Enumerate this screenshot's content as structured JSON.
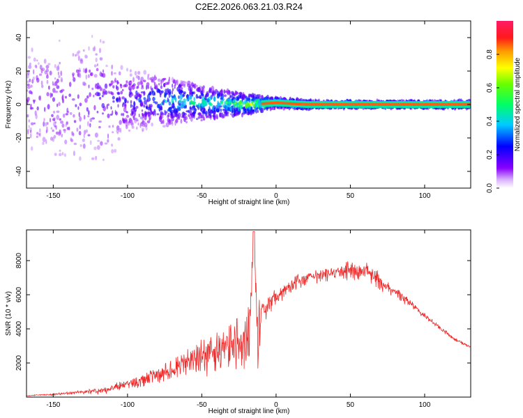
{
  "title": "C2E2.2026.063.21.03.R24",
  "chart_data": [
    {
      "type": "heatmap",
      "description_role": "spectrogram",
      "xlabel": "Height of straight line (km)",
      "ylabel": "Frequency (Hz)",
      "xlim": [
        -168,
        131
      ],
      "ylim": [
        -50,
        50
      ],
      "x_ticks": [
        -150,
        -100,
        -50,
        0,
        50,
        100
      ],
      "x_tick_labels": [
        "-150",
        "-100",
        "-50",
        "0",
        "50",
        "100"
      ],
      "y_ticks": [
        -40,
        -20,
        0,
        20,
        40
      ],
      "y_tick_labels": [
        "-40",
        "-20",
        "0",
        "20",
        "40"
      ],
      "colorbar": {
        "label": "Normalized spectral amplitude",
        "range": [
          0,
          1
        ],
        "ticks": [
          0.0,
          0.2,
          0.4,
          0.6,
          0.8
        ],
        "tick_labels": [
          "0.0",
          "0.2",
          "0.4",
          "0.6",
          "0.8"
        ]
      },
      "band": {
        "center_hz": [
          [
            -168,
            2
          ],
          [
            -120,
            2
          ],
          [
            -80,
            2
          ],
          [
            -50,
            1
          ],
          [
            -20,
            0
          ],
          [
            0,
            1
          ],
          [
            20,
            0
          ],
          [
            131,
            0
          ]
        ],
        "halfwidth_hz": [
          [
            -168,
            48
          ],
          [
            -120,
            45
          ],
          [
            -100,
            20
          ],
          [
            -60,
            12
          ],
          [
            -20,
            6
          ],
          [
            0,
            3
          ],
          [
            30,
            2
          ],
          [
            131,
            2
          ]
        ],
        "peak_amplitude": [
          [
            -168,
            0.15
          ],
          [
            -120,
            0.22
          ],
          [
            -90,
            0.3
          ],
          [
            -70,
            0.5
          ],
          [
            -40,
            0.6
          ],
          [
            -10,
            0.85
          ],
          [
            20,
            0.9
          ],
          [
            131,
            0.95
          ]
        ]
      }
    },
    {
      "type": "line",
      "xlabel": "Height of straight line (km)",
      "ylabel": "SNR (10 * v/v)",
      "xlim": [
        -168,
        131
      ],
      "ylim": [
        0,
        9800
      ],
      "x_ticks": [
        -150,
        -100,
        -50,
        0,
        50,
        100
      ],
      "x_tick_labels": [
        "-150",
        "-100",
        "-50",
        "0",
        "50",
        "100"
      ],
      "y_ticks": [
        2000,
        4000,
        6000,
        8000
      ],
      "y_tick_labels": [
        "2000",
        "4000",
        "6000",
        "8000"
      ],
      "color": "#ee2a2a",
      "series": [
        {
          "name": "SNR",
          "x": [
            -168,
            -160,
            -150,
            -140,
            -130,
            -120,
            -110,
            -100,
            -90,
            -80,
            -70,
            -60,
            -50,
            -40,
            -30,
            -22,
            -18,
            -15,
            -13,
            -12,
            -10,
            -5,
            0,
            5,
            10,
            20,
            30,
            40,
            50,
            60,
            65,
            70,
            80,
            90,
            100,
            110,
            120,
            131
          ],
          "y": [
            100,
            150,
            200,
            300,
            400,
            500,
            700,
            1000,
            1300,
            1700,
            2200,
            2700,
            3200,
            3700,
            4200,
            4700,
            5200,
            9700,
            5800,
            1200,
            5800,
            6000,
            6200,
            6700,
            7000,
            7300,
            7500,
            7700,
            7900,
            7800,
            7600,
            7100,
            6500,
            5700,
            4900,
            4200,
            3500,
            3000
          ],
          "noise_amplitude": [
            50,
            60,
            100,
            150,
            200,
            300,
            400,
            500,
            700,
            900,
            1200,
            1500,
            1800,
            2000,
            2300,
            2600,
            3000,
            0,
            2000,
            0,
            1500,
            1200,
            1000,
            900,
            800,
            700,
            700,
            800,
            900,
            900,
            900,
            800,
            600,
            400,
            300,
            250,
            200,
            150
          ]
        }
      ]
    }
  ]
}
